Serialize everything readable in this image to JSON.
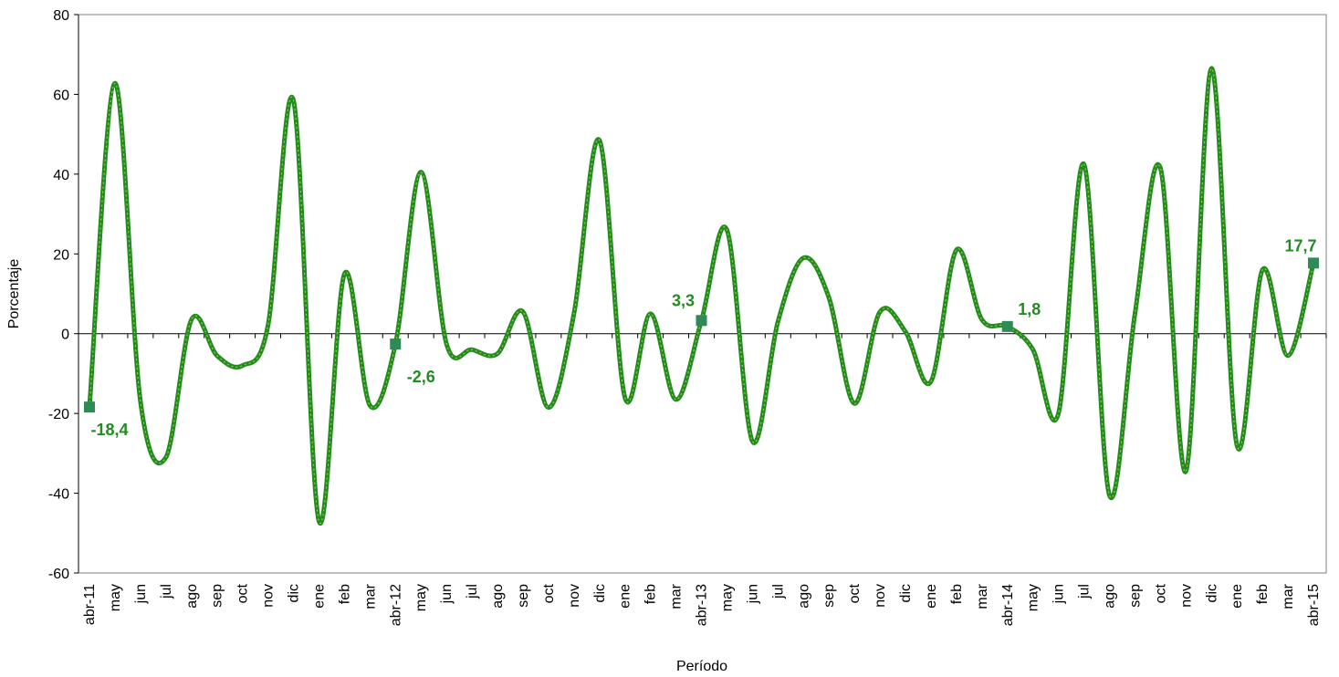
{
  "chart_data": {
    "type": "line",
    "title": "",
    "xlabel": "Período",
    "ylabel": "Porcentaje",
    "ylim": [
      -60,
      80
    ],
    "yticks": [
      -60,
      -40,
      -20,
      0,
      20,
      40,
      60,
      80
    ],
    "grid": false,
    "legend": "none",
    "colors": {
      "line": "#228B22",
      "line_highlight": "#9ACD32",
      "marker": "#2E8B57",
      "label": "#228B22"
    },
    "categories": [
      "abr-11",
      "may",
      "jun",
      "jul",
      "ago",
      "sep",
      "oct",
      "nov",
      "dic",
      "ene",
      "feb",
      "mar",
      "abr-12",
      "may",
      "jun",
      "jul",
      "ago",
      "sep",
      "oct",
      "nov",
      "dic",
      "ene",
      "feb",
      "mar",
      "abr-13",
      "may",
      "jun",
      "jul",
      "ago",
      "sep",
      "oct",
      "nov",
      "dic",
      "ene",
      "feb",
      "mar",
      "abr-14",
      "may",
      "jun",
      "jul",
      "ago",
      "sep",
      "oct",
      "nov",
      "dic",
      "ene",
      "feb",
      "mar",
      "abr-15"
    ],
    "series": [
      {
        "values": [
          -18.4,
          62.8,
          -17,
          -31,
          3.5,
          -5.5,
          -8,
          2,
          58.5,
          -47,
          15,
          -18,
          -2.6,
          40.5,
          -2.5,
          -4,
          -5,
          5.5,
          -18.5,
          5,
          48.5,
          -16,
          5,
          -16.5,
          3.3,
          26,
          -27,
          3,
          19,
          9,
          -17.5,
          5.5,
          0.5,
          -12,
          21,
          3.5,
          1.8,
          -4,
          -20,
          42.5,
          -40.5,
          5,
          41.5,
          -34.5,
          66.5,
          -28,
          16,
          -5.5,
          17.7
        ]
      }
    ],
    "highlighted_points": [
      {
        "category_index": 0,
        "label": "-18,4"
      },
      {
        "category_index": 12,
        "label": "-2,6"
      },
      {
        "category_index": 24,
        "label": "3,3"
      },
      {
        "category_index": 36,
        "label": "1,8"
      },
      {
        "category_index": 48,
        "label": "17,7"
      }
    ]
  }
}
